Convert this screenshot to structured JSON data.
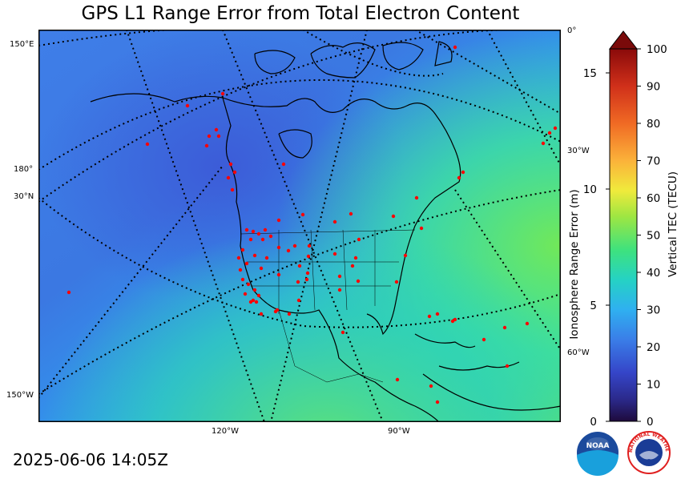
{
  "title": "GPS L1 Range Error from Total Electron Content",
  "timestamp": "2025-06-06 14:05Z",
  "map": {
    "left_labels": [
      "150°E",
      "180°",
      "30°N",
      "150°W"
    ],
    "right_labels": [
      "0°",
      "30°W",
      "60°W"
    ],
    "bottom_labels": [
      "120°W",
      "90°W"
    ],
    "station_color": "#ff0000"
  },
  "colorbar": {
    "tec_label": "Vertical TEC (TECU)",
    "tec_ticks": [
      "0",
      "10",
      "20",
      "30",
      "40",
      "50",
      "60",
      "70",
      "80",
      "90",
      "100"
    ],
    "range_label": "Ionosphere Range Error (m)",
    "range_ticks": [
      "0",
      "5",
      "10",
      "15"
    ]
  },
  "logos": {
    "noaa": "NOAA",
    "nws": "NATIONAL WEATHER SERVICE"
  }
}
